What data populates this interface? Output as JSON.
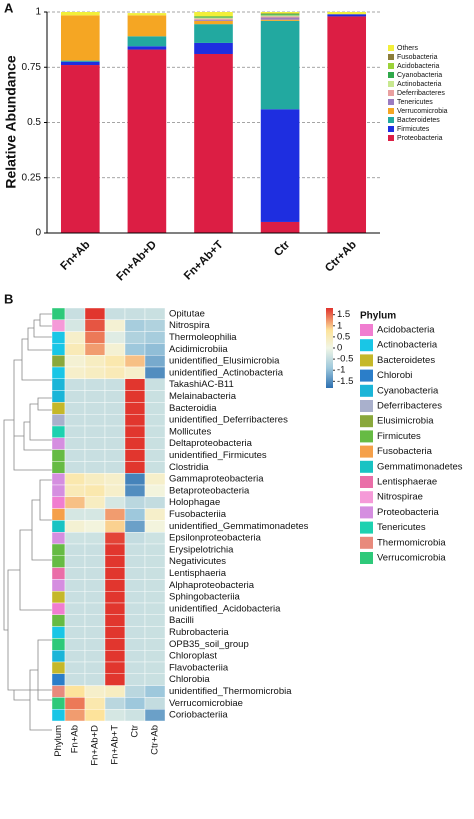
{
  "chart_data": [
    {
      "type": "bar",
      "stacked": true,
      "label": "A",
      "y_label": "Relative Abundance",
      "categories": [
        "Fn+Ab",
        "Fn+Ab+D",
        "Fn+Ab+T",
        "Ctr",
        "Ctr+Ab"
      ],
      "series": [
        {
          "name": "Proteobacteria",
          "color": "#dc1e44",
          "values": [
            0.76,
            0.83,
            0.81,
            0.05,
            0.98
          ]
        },
        {
          "name": "Firmicutes",
          "color": "#1e2ee0",
          "values": [
            0.015,
            0.015,
            0.05,
            0.51,
            0.01
          ]
        },
        {
          "name": "Bacteroidetes",
          "color": "#22a9a0",
          "values": [
            0.005,
            0.045,
            0.085,
            0.4,
            0
          ]
        },
        {
          "name": "Verrucomicrobia",
          "color": "#f5a623",
          "values": [
            0.205,
            0.095,
            0.015,
            0.005,
            0
          ]
        },
        {
          "name": "Tenericutes",
          "color": "#9a7bc0",
          "values": [
            0,
            0,
            0.005,
            0.01,
            0
          ]
        },
        {
          "name": "Deferribacteres",
          "color": "#e9a0a0",
          "values": [
            0,
            0,
            0.005,
            0.005,
            0
          ]
        },
        {
          "name": "Actinobacteria",
          "color": "#c8e890",
          "values": [
            0,
            0,
            0.005,
            0.005,
            0
          ]
        },
        {
          "name": "Cyanobacteria",
          "color": "#2fa84a",
          "values": [
            0,
            0,
            0.005,
            0.005,
            0
          ]
        },
        {
          "name": "Acidobacteria",
          "color": "#9bd23a",
          "values": [
            0,
            0,
            0,
            0.003,
            0
          ]
        },
        {
          "name": "Fusobacteria",
          "color": "#8b7d3a",
          "values": [
            0,
            0,
            0,
            0.002,
            0
          ]
        },
        {
          "name": "Others",
          "color": "#f2ef3a",
          "values": [
            0.015,
            0.01,
            0.02,
            0.005,
            0.01
          ]
        }
      ],
      "ylim": [
        0,
        1
      ],
      "yticks": [
        0,
        0.25,
        0.5,
        0.75,
        1
      ],
      "grid": true,
      "legend": "right"
    },
    {
      "type": "heatmap",
      "label": "B",
      "columns": [
        "Fn+Ab",
        "Fn+Ab+D",
        "Fn+Ab+T",
        "Ctr",
        "Ctr+Ab"
      ],
      "phylum_column_label": "Phylum",
      "rows": [
        "Opitutae",
        "Nitrospira",
        "Thermoleophilia",
        "Acidimicrobiia",
        "unidentified_Elusimicrobia",
        "unidentified_Actinobacteria",
        "TakashiAC-B11",
        "Melainabacteria",
        "Bacteroidia",
        "unidentified_Deferribacteres",
        "Mollicutes",
        "Deltaproteobacteria",
        "unidentified_Firmicutes",
        "Clostridia",
        "Gammaproteobacteria",
        "Betaproteobacteria",
        "Holophagae",
        "Fusobacteriia",
        "unidentified_Gemmatimonadetes",
        "Epsilonproteobacteria",
        "Erysipelotrichia",
        "Negativicutes",
        "Lentisphaeria",
        "Alphaproteobacteria",
        "Sphingobacteriia",
        "unidentified_Acidobacteria",
        "Bacilli",
        "Rubrobacteria",
        "OPB35_soil_group",
        "Chloroplast",
        "Flavobacteriia",
        "Chlorobia",
        "unidentified_Thermomicrobia",
        "Verrucomicrobiae",
        "Coriobacteriia"
      ],
      "row_phylum": [
        "Verrucomicrobia",
        "Nitrospirae",
        "Actinobacteria",
        "Actinobacteria",
        "Elusimicrobia",
        "Actinobacteria",
        "Cyanobacteria",
        "Cyanobacteria",
        "Bacteroidetes",
        "Deferribacteres",
        "Tenericutes",
        "Proteobacteria",
        "Firmicutes",
        "Firmicutes",
        "Proteobacteria",
        "Proteobacteria",
        "Acidobacteria",
        "Fusobacteria",
        "Gemmatimonadetes",
        "Proteobacteria",
        "Firmicutes",
        "Firmicutes",
        "Lentisphaerae",
        "Proteobacteria",
        "Bacteroidetes",
        "Acidobacteria",
        "Firmicutes",
        "Actinobacteria",
        "Verrucomicrobia",
        "Cyanobacteria",
        "Bacteroidetes",
        "Chlorobi",
        "Thermomicrobia",
        "Verrucomicrobia",
        "Actinobacteria"
      ],
      "values": [
        [
          -0.45,
          1.78,
          -0.45,
          -0.45,
          -0.43
        ],
        [
          -0.3,
          1.6,
          0.2,
          -0.8,
          -0.7
        ],
        [
          0.3,
          1.4,
          -0.2,
          -0.7,
          -0.8
        ],
        [
          0.5,
          1.2,
          0.2,
          -0.9,
          -1.0
        ],
        [
          0.2,
          0.4,
          0.6,
          1.0,
          -1.2
        ],
        [
          0.3,
          0.4,
          0.5,
          0.3,
          -1.5
        ],
        [
          -0.45,
          -0.45,
          -0.45,
          1.78,
          -0.43
        ],
        [
          -0.45,
          -0.45,
          -0.45,
          1.78,
          -0.43
        ],
        [
          -0.45,
          -0.45,
          -0.45,
          1.78,
          -0.43
        ],
        [
          -0.45,
          -0.45,
          -0.45,
          1.78,
          -0.43
        ],
        [
          -0.45,
          -0.45,
          -0.45,
          1.78,
          -0.43
        ],
        [
          -0.45,
          -0.45,
          -0.45,
          1.78,
          -0.43
        ],
        [
          -0.45,
          -0.45,
          -0.45,
          1.78,
          -0.43
        ],
        [
          -0.45,
          -0.45,
          -0.45,
          1.78,
          -0.43
        ],
        [
          0.6,
          0.4,
          0.3,
          -1.6,
          0.3
        ],
        [
          0.5,
          0.6,
          0.3,
          -1.5,
          0.1
        ],
        [
          1.0,
          0.4,
          -0.3,
          -0.6,
          -0.5
        ],
        [
          -0.3,
          -0.3,
          1.2,
          -0.9,
          0.3
        ],
        [
          0.2,
          0.1,
          0.9,
          -1.3,
          0.1
        ],
        [
          -0.4,
          -0.4,
          1.7,
          -0.5,
          -0.4
        ],
        [
          -0.45,
          -0.45,
          1.78,
          -0.45,
          -0.43
        ],
        [
          -0.45,
          -0.45,
          1.78,
          -0.45,
          -0.43
        ],
        [
          -0.45,
          -0.45,
          1.78,
          -0.45,
          -0.43
        ],
        [
          -0.45,
          -0.45,
          1.78,
          -0.45,
          -0.43
        ],
        [
          -0.45,
          -0.45,
          1.78,
          -0.45,
          -0.43
        ],
        [
          -0.45,
          -0.45,
          1.78,
          -0.45,
          -0.43
        ],
        [
          -0.45,
          -0.45,
          1.78,
          -0.45,
          -0.43
        ],
        [
          -0.45,
          -0.45,
          1.78,
          -0.45,
          -0.43
        ],
        [
          -0.45,
          -0.45,
          1.78,
          -0.45,
          -0.43
        ],
        [
          -0.45,
          -0.45,
          1.78,
          -0.45,
          -0.43
        ],
        [
          -0.45,
          -0.45,
          1.78,
          -0.45,
          -0.43
        ],
        [
          -0.45,
          -0.45,
          1.78,
          -0.45,
          -0.43
        ],
        [
          0.8,
          0.3,
          0.4,
          -0.6,
          -0.9
        ],
        [
          1.4,
          0.6,
          -0.6,
          -0.9,
          -0.5
        ],
        [
          1.2,
          0.8,
          -0.3,
          -0.4,
          -1.3
        ]
      ],
      "clim": [
        -1.8,
        1.8
      ],
      "cticks": [
        1.5,
        1,
        0.5,
        0,
        -0.5,
        -1,
        -1.5
      ],
      "legend_title": "Phylum",
      "phyla": [
        {
          "name": "Acidobacteria",
          "color": "#f07dd0"
        },
        {
          "name": "Actinobacteria",
          "color": "#19c6e6"
        },
        {
          "name": "Bacteroidetes",
          "color": "#c5b82a"
        },
        {
          "name": "Chlorobi",
          "color": "#2b7ec9"
        },
        {
          "name": "Cyanobacteria",
          "color": "#1bb5d8"
        },
        {
          "name": "Deferribacteres",
          "color": "#a9b0cc"
        },
        {
          "name": "Elusimicrobia",
          "color": "#8aa83c"
        },
        {
          "name": "Firmicutes",
          "color": "#66bb44"
        },
        {
          "name": "Fusobacteria",
          "color": "#f5a04a"
        },
        {
          "name": "Gemmatimonadetes",
          "color": "#19c3c3"
        },
        {
          "name": "Lentisphaerae",
          "color": "#ea6ea8"
        },
        {
          "name": "Nitrospirae",
          "color": "#f59ad8"
        },
        {
          "name": "Proteobacteria",
          "color": "#d58ee0"
        },
        {
          "name": "Tenericutes",
          "color": "#1dd1b0"
        },
        {
          "name": "Thermomicrobia",
          "color": "#e88a7c"
        },
        {
          "name": "Verrucomicrobia",
          "color": "#2ec97a"
        }
      ]
    }
  ]
}
